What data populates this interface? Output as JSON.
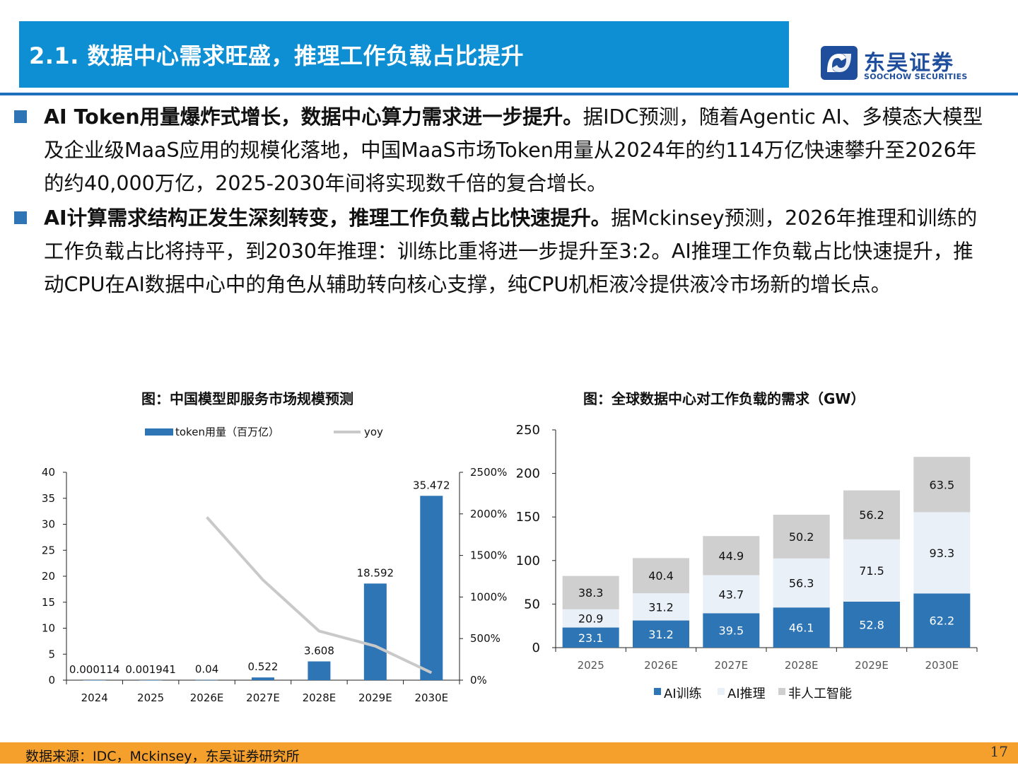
{
  "header": {
    "title": "2.1. 数据中心需求旺盛，推理工作负载占比提升",
    "logo_cn": "东吴证券",
    "logo_en": "SOOCHOW SECURITIES"
  },
  "bullets": [
    {
      "bold": "AI Token用量爆炸式增长，数据中心算力需求进一步提升。",
      "text": "据IDC预测，随着Agentic AI、多模态大模型及企业级MaaS应用的规模化落地，中国MaaS市场Token用量从2024年的约114万亿快速攀升至2026年的约40,000万亿，2025-2030年间将实现数千倍的复合增长。"
    },
    {
      "bold": "AI计算需求结构正发生深刻转变，推理工作负载占比快速提升。",
      "text": "据Mckinsey预测，2026年推理和训练的工作负载占比将持平，到2030年推理：训练比重将进一步提升至3:2。AI推理工作负载占比快速提升，推动CPU在AI数据中心中的角色从辅助转向核心支撑，纯CPU机柜液冷提供液冷市场新的增长点。"
    }
  ],
  "chart_data": [
    {
      "type": "bar",
      "title": "图：中国模型即服务市场规模预测",
      "categories": [
        "2024",
        "2025",
        "2026E",
        "2027E",
        "2028E",
        "2029E",
        "2030E"
      ],
      "series": [
        {
          "name": "token用量（百万亿）",
          "values": [
            0.000114,
            0.001941,
            0.04,
            0.522,
            3.608,
            18.592,
            35.472
          ],
          "labels": [
            "0.000114",
            "0.001941",
            "0.04",
            "0.522",
            "3.608",
            "18.592",
            "35.472"
          ],
          "color": "#2e75b6",
          "axis": "left"
        },
        {
          "name": "yoy",
          "type": "line",
          "values": [
            null,
            null,
            1960,
            1205,
            590,
            410,
            90
          ],
          "color": "#c9c9c9",
          "axis": "right"
        }
      ],
      "ylim": [
        0,
        40
      ],
      "yticks": [
        "0",
        "5",
        "10",
        "15",
        "20",
        "25",
        "30",
        "35",
        "40"
      ],
      "y2lim": [
        0,
        2500
      ],
      "y2ticks": [
        "0%",
        "500%",
        "1000%",
        "1500%",
        "2000%",
        "2500%"
      ],
      "legend": "top"
    },
    {
      "type": "bar",
      "stacked": true,
      "title": "图：全球数据中心对工作负载的需求（GW）",
      "categories": [
        "2025",
        "2026E",
        "2027E",
        "2028E",
        "2029E",
        "2030E"
      ],
      "series": [
        {
          "name": "AI训练",
          "values": [
            23.1,
            31.2,
            39.5,
            46.1,
            52.8,
            62.2
          ],
          "color": "#2e75b6",
          "label_color": "#ffffff"
        },
        {
          "name": "AI推理",
          "values": [
            20.9,
            31.2,
            43.7,
            56.3,
            71.5,
            93.3
          ],
          "color": "#eaf0f8",
          "label_color": "#111111"
        },
        {
          "name": "非人工智能",
          "values": [
            38.3,
            40.4,
            44.9,
            50.2,
            56.2,
            63.5
          ],
          "color": "#cfcfcf",
          "label_color": "#111111"
        }
      ],
      "ylim": [
        0,
        250
      ],
      "yticks": [
        "0",
        "50",
        "100",
        "150",
        "200",
        "250"
      ],
      "legend": "bottom"
    }
  ],
  "footer": {
    "source": "数据来源：IDC，Mckinsey，东吴证券研究所",
    "page": "17"
  }
}
